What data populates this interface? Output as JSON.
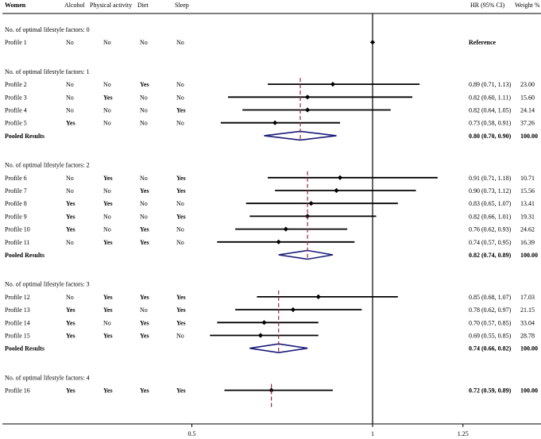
{
  "chart_data": {
    "type": "forest",
    "xlim": [
      0,
      1.5
    ],
    "reference_line": 1,
    "x_ticks": [
      0.5,
      1,
      1.25
    ],
    "x_tick_labels": [
      "0.5",
      "1",
      "1.25"
    ],
    "columns": {
      "label": "Women",
      "alcohol": "Alcohol",
      "physical_activity": "Physical activity",
      "diet": "Diet",
      "sleep": "Sleep",
      "hr": "HR (95% CI)",
      "weight": "Weight %"
    },
    "groups": [
      {
        "title": "No. of optimal lifestyle factors: 0",
        "rows": [
          {
            "label": "Profile 1",
            "alcohol": "No",
            "physical_activity": "No",
            "diet": "No",
            "sleep": "No",
            "hr": 1.0,
            "lo": null,
            "hi": null,
            "hr_text": "Reference",
            "weight": "",
            "bold_hr": true
          }
        ]
      },
      {
        "title": "No. of optimal lifestyle factors: 1",
        "dash_x": 0.8,
        "rows": [
          {
            "label": "Profile 2",
            "alcohol": "No",
            "physical_activity": "No",
            "diet": "Yes",
            "sleep": "No",
            "hr": 0.89,
            "lo": 0.71,
            "hi": 1.13,
            "hr_text": "0.89 (0.71, 1.13)",
            "weight": "23.00"
          },
          {
            "label": "Profile 3",
            "alcohol": "No",
            "physical_activity": "Yes",
            "diet": "No",
            "sleep": "No",
            "hr": 0.82,
            "lo": 0.6,
            "hi": 1.11,
            "hr_text": "0.82 (0.60, 1.11)",
            "weight": "15.60"
          },
          {
            "label": "Profile 4",
            "alcohol": "No",
            "physical_activity": "No",
            "diet": "No",
            "sleep": "Yes",
            "hr": 0.82,
            "lo": 0.64,
            "hi": 1.05,
            "hr_text": "0.82 (0.64, 1.05)",
            "weight": "24.14"
          },
          {
            "label": "Profile 5",
            "alcohol": "Yes",
            "physical_activity": "No",
            "diet": "No",
            "sleep": "No",
            "hr": 0.73,
            "lo": 0.58,
            "hi": 0.91,
            "hr_text": "0.73 (0.58, 0.91)",
            "weight": "37.26"
          }
        ],
        "pooled": {
          "label": "Pooled Results",
          "hr": 0.8,
          "lo": 0.7,
          "hi": 0.9,
          "hr_text": "0.80 (0.70, 0.90)",
          "weight": "100.00"
        }
      },
      {
        "title": "No. of optimal lifestyle factors: 2",
        "dash_x": 0.82,
        "rows": [
          {
            "label": "Profile 6",
            "alcohol": "No",
            "physical_activity": "Yes",
            "diet": "No",
            "sleep": "Yes",
            "hr": 0.91,
            "lo": 0.71,
            "hi": 1.18,
            "hr_text": "0.91 (0.71, 1.18)",
            "weight": "10.71"
          },
          {
            "label": "Profile 7",
            "alcohol": "No",
            "physical_activity": "No",
            "diet": "Yes",
            "sleep": "Yes",
            "hr": 0.9,
            "lo": 0.73,
            "hi": 1.12,
            "hr_text": "0.90 (0.73, 1.12)",
            "weight": "15.56"
          },
          {
            "label": "Profile 8",
            "alcohol": "Yes",
            "physical_activity": "Yes",
            "diet": "No",
            "sleep": "No",
            "hr": 0.83,
            "lo": 0.65,
            "hi": 1.07,
            "hr_text": "0.83 (0.65, 1.07)",
            "weight": "13.41"
          },
          {
            "label": "Profile 9",
            "alcohol": "Yes",
            "physical_activity": "No",
            "diet": "No",
            "sleep": "Yes",
            "hr": 0.82,
            "lo": 0.66,
            "hi": 1.01,
            "hr_text": "0.82 (0.66, 1.01)",
            "weight": "19.31"
          },
          {
            "label": "Profile 10",
            "alcohol": "Yes",
            "physical_activity": "No",
            "diet": "Yes",
            "sleep": "No",
            "hr": 0.76,
            "lo": 0.62,
            "hi": 0.93,
            "hr_text": "0.76 (0.62, 0.93)",
            "weight": "24.62"
          },
          {
            "label": "Profile 11",
            "alcohol": "No",
            "physical_activity": "Yes",
            "diet": "Yes",
            "sleep": "No",
            "hr": 0.74,
            "lo": 0.57,
            "hi": 0.95,
            "hr_text": "0.74 (0.57, 0.95)",
            "weight": "16.39"
          }
        ],
        "pooled": {
          "label": "Pooled Results",
          "hr": 0.82,
          "lo": 0.74,
          "hi": 0.89,
          "hr_text": "0.82 (0.74, 0.89)",
          "weight": "100.00"
        }
      },
      {
        "title": "No. of optimal lifestyle factors: 3",
        "dash_x": 0.74,
        "rows": [
          {
            "label": "Profile 12",
            "alcohol": "No",
            "physical_activity": "Yes",
            "diet": "Yes",
            "sleep": "Yes",
            "hr": 0.85,
            "lo": 0.68,
            "hi": 1.07,
            "hr_text": "0.85 (0.68, 1.07)",
            "weight": "17.03"
          },
          {
            "label": "Profile 13",
            "alcohol": "Yes",
            "physical_activity": "Yes",
            "diet": "No",
            "sleep": "Yes",
            "hr": 0.78,
            "lo": 0.62,
            "hi": 0.97,
            "hr_text": "0.78 (0.62, 0.97)",
            "weight": "21.15"
          },
          {
            "label": "Profile 14",
            "alcohol": "Yes",
            "physical_activity": "No",
            "diet": "Yes",
            "sleep": "Yes",
            "hr": 0.7,
            "lo": 0.57,
            "hi": 0.85,
            "hr_text": "0.70 (0.57, 0.85)",
            "weight": "33.04"
          },
          {
            "label": "Profile 15",
            "alcohol": "Yes",
            "physical_activity": "Yes",
            "diet": "Yes",
            "sleep": "No",
            "hr": 0.69,
            "lo": 0.55,
            "hi": 0.85,
            "hr_text": "0.69 (0.55, 0.85)",
            "weight": "28.78"
          }
        ],
        "pooled": {
          "label": "Pooled Results",
          "hr": 0.74,
          "lo": 0.66,
          "hi": 0.82,
          "hr_text": "0.74 (0.66, 0.82)",
          "weight": "100.00"
        }
      },
      {
        "title": "No. of optimal lifestyle factors: 4",
        "dash_x": 0.72,
        "rows": [
          {
            "label": "Profile 16",
            "alcohol": "Yes",
            "physical_activity": "Yes",
            "diet": "Yes",
            "sleep": "Yes",
            "hr": 0.72,
            "lo": 0.59,
            "hi": 0.89,
            "hr_text": "0.72 (0.59, 0.89)",
            "weight": "100.00",
            "bold_hr": true
          }
        ]
      }
    ],
    "colors": {
      "ci": "#000000",
      "diamond": "#1a1a7a",
      "dash": "#9b2a35",
      "axis": "#000000"
    }
  }
}
